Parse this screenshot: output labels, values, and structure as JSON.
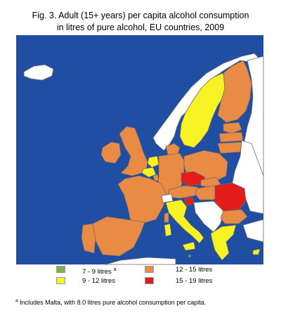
{
  "figure": {
    "title_line1": "Fig. 3. Adult (15+ years) per capita alcohol consumption",
    "title_line2": "in litres of pure alcohol, EU countries, 2009"
  },
  "colors": {
    "sea": "#1f4ea3",
    "land_outside_eu": "#ffffff",
    "border": "#6a6a6a",
    "class_7_9": "#79b24d",
    "class_9_12": "#f7f224",
    "class_12_15": "#e98b45",
    "class_15_19": "#e41c1c"
  },
  "legend": {
    "items": [
      {
        "label": "7 - 9 litres",
        "marker": "a",
        "color_key": "class_7_9"
      },
      {
        "label": "9 - 12 litres",
        "marker": "",
        "color_key": "class_9_12"
      },
      {
        "label": "12 - 15 litres",
        "marker": "",
        "color_key": "class_12_15"
      },
      {
        "label": "15 - 19 litres",
        "marker": "",
        "color_key": "class_15_19"
      }
    ]
  },
  "footnote": {
    "marker": "a",
    "text": " Includes Malta, with 8.0 litres pure alcohol consumption per capita."
  }
}
